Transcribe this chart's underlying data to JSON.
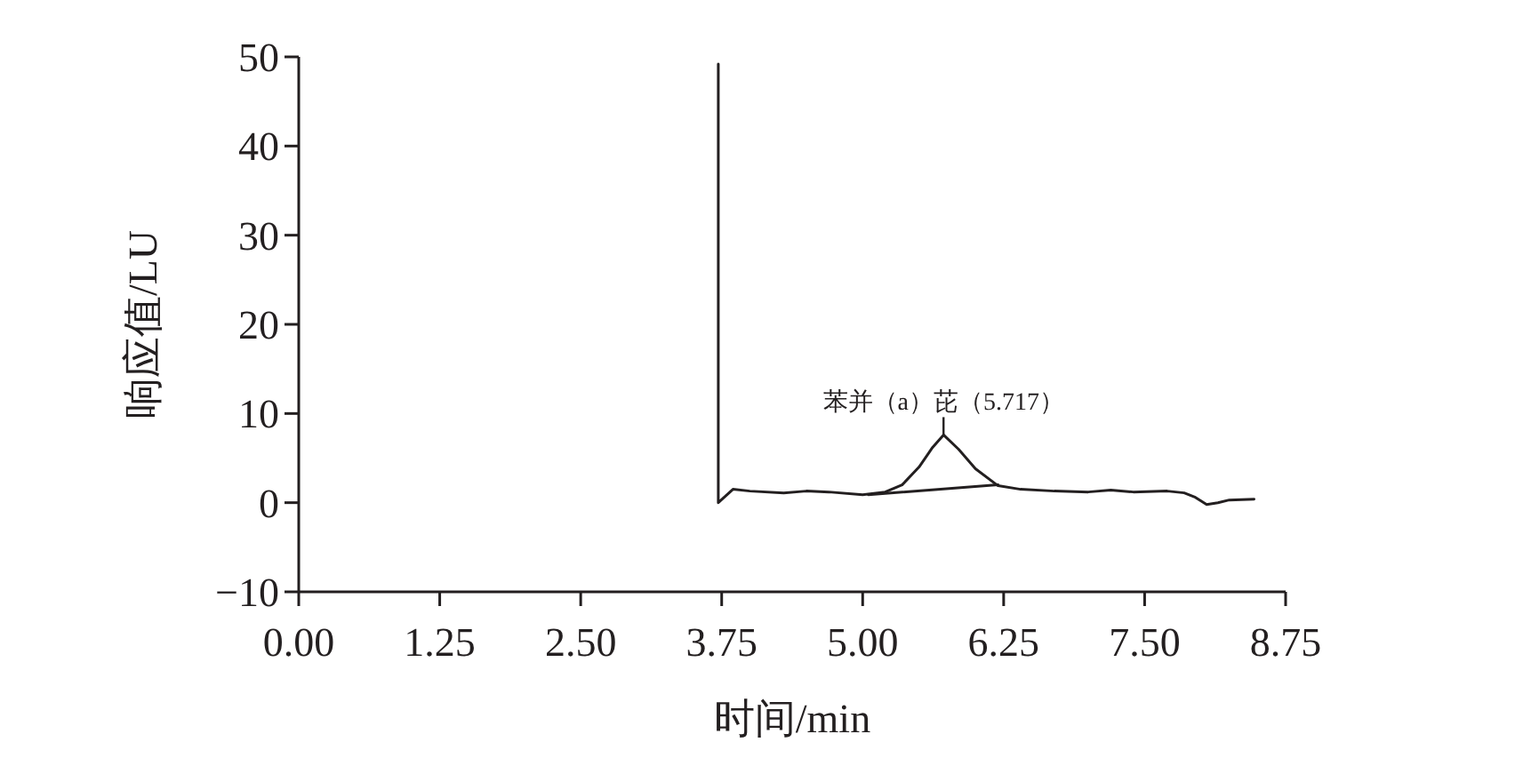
{
  "chart_data": {
    "type": "line",
    "xlabel": "时间/min",
    "ylabel": "响应值/LU",
    "xlim": [
      0,
      8.75
    ],
    "ylim": [
      -10,
      50
    ],
    "xticks": [
      {
        "value": 0,
        "label": "0.00"
      },
      {
        "value": 1.25,
        "label": "1.25"
      },
      {
        "value": 2.5,
        "label": "2.50"
      },
      {
        "value": 3.75,
        "label": "3.75"
      },
      {
        "value": 5,
        "label": "5.00"
      },
      {
        "value": 6.25,
        "label": "6.25"
      },
      {
        "value": 7.5,
        "label": "7.50"
      },
      {
        "value": 8.75,
        "label": "8.75"
      }
    ],
    "yticks": [
      {
        "value": -10,
        "label": "−10"
      },
      0,
      10,
      20,
      30,
      40,
      50
    ],
    "grid": false,
    "marker": "none",
    "line_style": "solid",
    "series": [
      {
        "color": "#231f20",
        "x": [
          3.72,
          3.72,
          3.85,
          4.0,
          4.3,
          4.5,
          4.7,
          5.0,
          5.2,
          5.35,
          5.5,
          5.62,
          5.717,
          5.85,
          6.0,
          6.2,
          6.4,
          6.7,
          7.0,
          7.2,
          7.4,
          7.7,
          7.85,
          7.95,
          8.05,
          8.15,
          8.25,
          8.47
        ],
        "values": [
          49.2,
          0,
          1.5,
          1.3,
          1.1,
          1.3,
          1.2,
          0.9,
          1.2,
          2.0,
          4.0,
          6.2,
          7.6,
          6.0,
          3.8,
          1.9,
          1.5,
          1.3,
          1.2,
          1.4,
          1.2,
          1.3,
          1.1,
          0.6,
          -0.2,
          0.0,
          0.3,
          0.4
        ]
      },
      {
        "color": "#231f20",
        "x": [
          5.05,
          6.2
        ],
        "values": [
          0.9,
          2.0
        ]
      }
    ],
    "annotations": [
      {
        "text": "苯并（a）芘（5.717）",
        "x": 5.717,
        "y": 7.6
      }
    ]
  }
}
